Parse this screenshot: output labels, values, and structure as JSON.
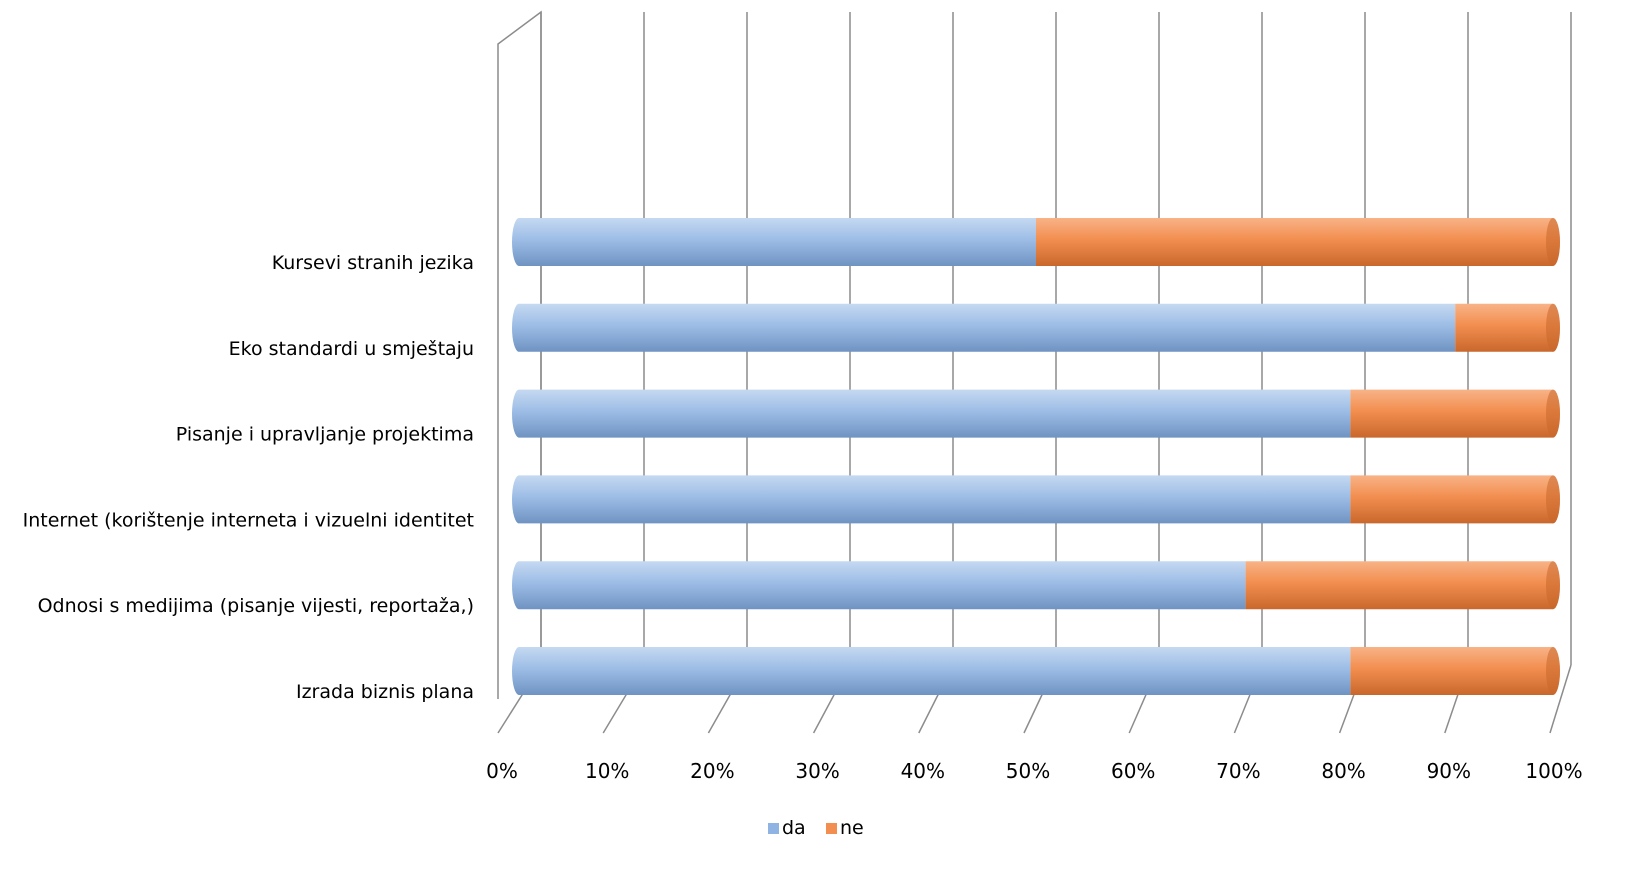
{
  "chart_data": {
    "type": "bar",
    "orientation": "horizontal",
    "stacked": "100%",
    "style": "3d-cylinder",
    "categories": [
      "Kursevi stranih jezika",
      "Eko standardi u smještaju",
      "Pisanje i upravljanje projektima",
      "Internet (korištenje interneta i vizuelni identitet",
      "Odnosi s medijima (pisanje vijesti, reportaža,)",
      "Izrada biznis plana"
    ],
    "series": [
      {
        "name": "da",
        "values": [
          50,
          90,
          80,
          80,
          70,
          80
        ],
        "color": "#8fb4e3"
      },
      {
        "name": "ne",
        "values": [
          50,
          10,
          20,
          20,
          30,
          20
        ],
        "color": "#f28e4f"
      }
    ],
    "xlim": [
      0,
      100
    ],
    "xticks": [
      "0%",
      "10%",
      "20%",
      "30%",
      "40%",
      "50%",
      "60%",
      "70%",
      "80%",
      "90%",
      "100%"
    ],
    "grid": true,
    "legend_position": "bottom"
  }
}
